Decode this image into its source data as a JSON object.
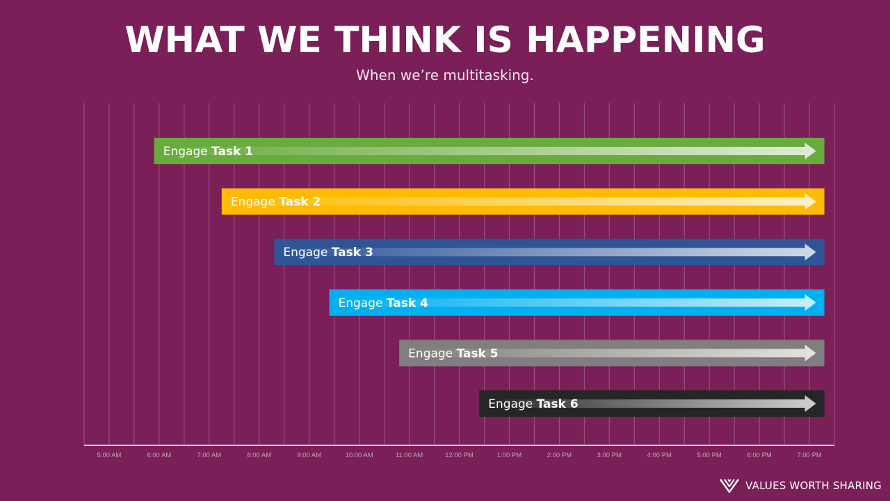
{
  "header": {
    "title": "WHAT WE THINK IS HAPPENING",
    "subtitle": "When we’re multitasking."
  },
  "brand": {
    "text": "VALUES WORTH SHARING",
    "logo_icon": "vws-logo-icon"
  },
  "colors": {
    "background": "#7a1f57",
    "gridline": "#9b5a84",
    "axis": "#e8d4e0"
  },
  "chart_data": {
    "type": "bar",
    "orientation": "horizontal",
    "ticks": [
      "5:00 AM",
      "6:00 AM",
      "7:00 AM",
      "8:00 AM",
      "9:00 AM",
      "10:00 AM",
      "11:00 AM",
      "12:00 PM",
      "1:00 PM",
      "2:00 PM",
      "3:00 PM",
      "4:00 PM",
      "5:00 PM",
      "6:00 PM",
      "7:00 PM"
    ],
    "x_unit": "hour of day",
    "xlim": [
      4.5,
      19.5
    ],
    "grid": true,
    "series": [
      {
        "prefix": "Engage",
        "name": "Task 1",
        "start": 5.9,
        "end": 19.3,
        "color": "#6aab3f"
      },
      {
        "prefix": "Engage",
        "name": "Task 2",
        "start": 7.25,
        "end": 19.3,
        "color": "#ffbb00"
      },
      {
        "prefix": "Engage",
        "name": "Task 3",
        "start": 8.3,
        "end": 19.3,
        "color": "#2f5597"
      },
      {
        "prefix": "Engage",
        "name": "Task 4",
        "start": 9.4,
        "end": 19.3,
        "color": "#00b0f0"
      },
      {
        "prefix": "Engage",
        "name": "Task 5",
        "start": 10.8,
        "end": 19.3,
        "color": "#7f7f7f"
      },
      {
        "prefix": "Engage",
        "name": "Task 6",
        "start": 12.4,
        "end": 19.3,
        "color": "#262626"
      }
    ]
  }
}
